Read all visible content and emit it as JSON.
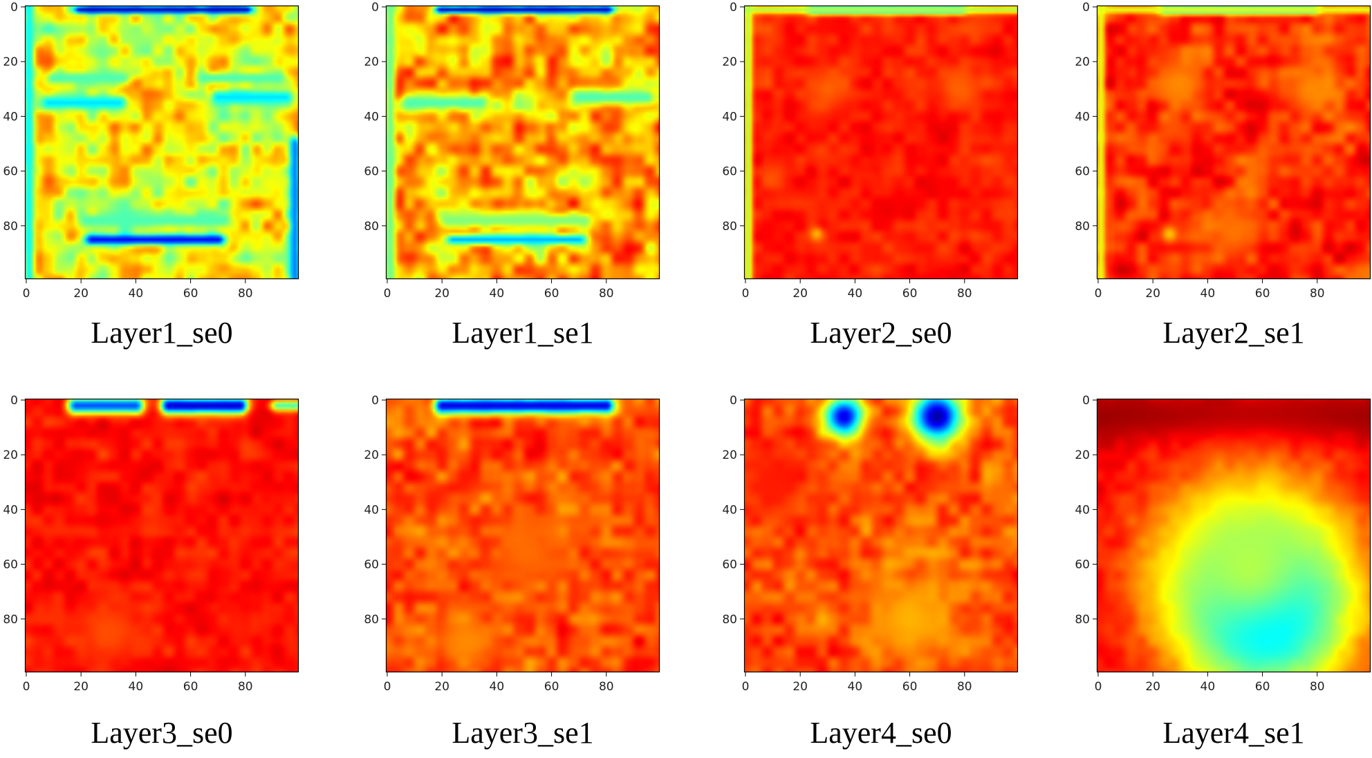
{
  "chart_data": [
    {
      "type": "heatmap",
      "title": "Layer1_se0",
      "xlim": [
        0,
        99
      ],
      "ylim": [
        0,
        99
      ],
      "x_ticks": [
        "0",
        "20",
        "40",
        "60",
        "80"
      ],
      "y_ticks": [
        "0",
        "20",
        "40",
        "60",
        "80"
      ],
      "colormap": "jet",
      "base_level": 0.62,
      "features": [
        {
          "kind": "band",
          "y": 1,
          "x0": 20,
          "x1": 80,
          "thickness": 1.5,
          "level": 0.05
        },
        {
          "kind": "band",
          "y": 35,
          "x0": 8,
          "x1": 34,
          "thickness": 3,
          "level": 0.35
        },
        {
          "kind": "band",
          "y": 33,
          "x0": 70,
          "x1": 95,
          "thickness": 3,
          "level": 0.35
        },
        {
          "kind": "band",
          "y": 26,
          "x0": 10,
          "x1": 35,
          "thickness": 2.5,
          "level": 0.45
        },
        {
          "kind": "band",
          "y": 26,
          "x0": 65,
          "x1": 92,
          "thickness": 2.5,
          "level": 0.45
        },
        {
          "kind": "band",
          "y": 85,
          "x0": 24,
          "x1": 70,
          "thickness": 2,
          "level": 0.12
        },
        {
          "kind": "band",
          "y": 78,
          "x0": 22,
          "x1": 72,
          "thickness": 3,
          "level": 0.45
        },
        {
          "kind": "column",
          "x": 1,
          "y0": 0,
          "y1": 99,
          "thickness": 2,
          "level": 0.38
        },
        {
          "kind": "column",
          "x": 98,
          "y0": 50,
          "y1": 99,
          "thickness": 2,
          "level": 0.25
        }
      ]
    },
    {
      "type": "heatmap",
      "title": "Layer1_se1",
      "xlim": [
        0,
        99
      ],
      "ylim": [
        0,
        99
      ],
      "x_ticks": [
        "0",
        "20",
        "40",
        "60",
        "80"
      ],
      "y_ticks": [
        "0",
        "20",
        "40",
        "60",
        "80"
      ],
      "colormap": "jet",
      "base_level": 0.7,
      "features": [
        {
          "kind": "band",
          "y": 1,
          "x0": 20,
          "x1": 80,
          "thickness": 1.5,
          "level": 0.05
        },
        {
          "kind": "band",
          "y": 35,
          "x0": 8,
          "x1": 34,
          "thickness": 3,
          "level": 0.45
        },
        {
          "kind": "band",
          "y": 33,
          "x0": 70,
          "x1": 95,
          "thickness": 3,
          "level": 0.45
        },
        {
          "kind": "band",
          "y": 85,
          "x0": 24,
          "x1": 70,
          "thickness": 2,
          "level": 0.3
        },
        {
          "kind": "band",
          "y": 78,
          "x0": 22,
          "x1": 72,
          "thickness": 3,
          "level": 0.5
        },
        {
          "kind": "column",
          "x": 1,
          "y0": 0,
          "y1": 99,
          "thickness": 2,
          "level": 0.48
        }
      ]
    },
    {
      "type": "heatmap",
      "title": "Layer2_se0",
      "xlim": [
        0,
        99
      ],
      "ylim": [
        0,
        99
      ],
      "x_ticks": [
        "0",
        "20",
        "40",
        "60",
        "80"
      ],
      "y_ticks": [
        "0",
        "20",
        "40",
        "60",
        "80"
      ],
      "colormap": "jet",
      "base_level": 0.85,
      "features": [
        {
          "kind": "band",
          "y": 1,
          "x0": 25,
          "x1": 78,
          "thickness": 1.5,
          "level": 0.12
        },
        {
          "kind": "band",
          "y": 1,
          "x0": 0,
          "x1": 99,
          "thickness": 1.5,
          "level": 0.55
        },
        {
          "kind": "column",
          "x": 1,
          "y0": 0,
          "y1": 99,
          "thickness": 1.5,
          "level": 0.55
        },
        {
          "kind": "blob",
          "x": 26,
          "y": 83,
          "r": 2.5,
          "level": 0.7
        },
        {
          "kind": "blob",
          "x": 30,
          "y": 30,
          "r": 8,
          "level": 0.78
        },
        {
          "kind": "blob",
          "x": 78,
          "y": 30,
          "r": 8,
          "level": 0.78
        }
      ]
    },
    {
      "type": "heatmap",
      "title": "Layer2_se1",
      "xlim": [
        0,
        99
      ],
      "ylim": [
        0,
        99
      ],
      "x_ticks": [
        "0",
        "20",
        "40",
        "60",
        "80"
      ],
      "y_ticks": [
        "0",
        "20",
        "40",
        "60",
        "80"
      ],
      "colormap": "jet",
      "base_level": 0.83,
      "features": [
        {
          "kind": "band",
          "y": 1,
          "x0": 25,
          "x1": 78,
          "thickness": 1.5,
          "level": 0.12
        },
        {
          "kind": "band",
          "y": 1,
          "x0": 0,
          "x1": 99,
          "thickness": 1.5,
          "level": 0.6
        },
        {
          "kind": "column",
          "x": 1,
          "y0": 0,
          "y1": 99,
          "thickness": 1.5,
          "level": 0.6
        },
        {
          "kind": "blob",
          "x": 26,
          "y": 83,
          "r": 3,
          "level": 0.68
        },
        {
          "kind": "blob",
          "x": 30,
          "y": 28,
          "r": 10,
          "level": 0.74
        },
        {
          "kind": "blob",
          "x": 78,
          "y": 30,
          "r": 10,
          "level": 0.74
        },
        {
          "kind": "blob",
          "x": 50,
          "y": 82,
          "r": 10,
          "level": 0.76
        }
      ]
    },
    {
      "type": "heatmap",
      "title": "Layer3_se0",
      "xlim": [
        0,
        99
      ],
      "ylim": [
        0,
        99
      ],
      "x_ticks": [
        "0",
        "20",
        "40",
        "60",
        "80"
      ],
      "y_ticks": [
        "0",
        "20",
        "40",
        "60",
        "80"
      ],
      "colormap": "jet",
      "base_level": 0.86,
      "features": [
        {
          "kind": "band",
          "y": 2,
          "x0": 18,
          "x1": 40,
          "thickness": 3,
          "level": 0.2
        },
        {
          "kind": "band",
          "y": 2,
          "x0": 52,
          "x1": 78,
          "thickness": 3,
          "level": 0.08
        },
        {
          "kind": "band",
          "y": 2,
          "x0": 92,
          "x1": 99,
          "thickness": 2,
          "level": 0.45
        },
        {
          "kind": "blob",
          "x": 30,
          "y": 85,
          "r": 12,
          "level": 0.8
        }
      ]
    },
    {
      "type": "heatmap",
      "title": "Layer3_se1",
      "xlim": [
        0,
        99
      ],
      "ylim": [
        0,
        99
      ],
      "x_ticks": [
        "0",
        "20",
        "40",
        "60",
        "80"
      ],
      "y_ticks": [
        "0",
        "20",
        "40",
        "60",
        "80"
      ],
      "colormap": "jet",
      "base_level": 0.8,
      "features": [
        {
          "kind": "band",
          "y": 2,
          "x0": 20,
          "x1": 80,
          "thickness": 3,
          "level": 0.1
        },
        {
          "kind": "blob",
          "x": 30,
          "y": 88,
          "r": 12,
          "level": 0.74
        },
        {
          "kind": "blob",
          "x": 50,
          "y": 55,
          "r": 15,
          "level": 0.77
        }
      ]
    },
    {
      "type": "heatmap",
      "title": "Layer4_se0",
      "xlim": [
        0,
        99
      ],
      "ylim": [
        0,
        99
      ],
      "x_ticks": [
        "0",
        "20",
        "40",
        "60",
        "80"
      ],
      "y_ticks": [
        "0",
        "20",
        "40",
        "60",
        "80"
      ],
      "colormap": "jet",
      "base_level": 0.8,
      "features": [
        {
          "kind": "blob",
          "x": 36,
          "y": 6,
          "r": 7,
          "level": 0.1
        },
        {
          "kind": "blob",
          "x": 70,
          "y": 6,
          "r": 9,
          "level": 0.04
        },
        {
          "kind": "blob",
          "x": 60,
          "y": 80,
          "r": 18,
          "level": 0.7
        },
        {
          "kind": "blob",
          "x": 10,
          "y": 30,
          "r": 15,
          "level": 0.85
        }
      ]
    },
    {
      "type": "heatmap",
      "title": "Layer4_se1",
      "xlim": [
        0,
        99
      ],
      "ylim": [
        0,
        99
      ],
      "x_ticks": [
        "0",
        "20",
        "40",
        "60",
        "80"
      ],
      "y_ticks": [
        "0",
        "20",
        "40",
        "60",
        "80"
      ],
      "colormap": "jet",
      "base_level": 0.88,
      "features": [
        {
          "kind": "band",
          "y": 6,
          "x0": 0,
          "x1": 99,
          "thickness": 9,
          "level": 0.97
        },
        {
          "kind": "blob",
          "x": 60,
          "y": 75,
          "r": 30,
          "level": 0.08
        },
        {
          "kind": "blob",
          "x": 55,
          "y": 60,
          "r": 34,
          "level": 0.55
        }
      ]
    }
  ]
}
